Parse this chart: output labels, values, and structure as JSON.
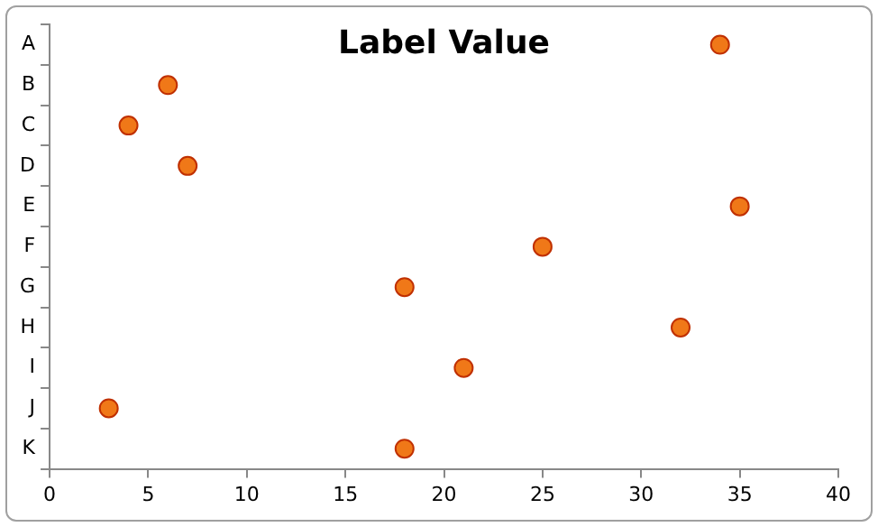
{
  "chart_data": {
    "type": "scatter",
    "title": "Label Value",
    "orientation": "horizontal",
    "categories": [
      "A",
      "B",
      "C",
      "D",
      "E",
      "F",
      "G",
      "H",
      "I",
      "J",
      "K"
    ],
    "values": [
      34,
      6,
      4,
      7,
      35,
      25,
      18,
      32,
      21,
      3,
      18
    ],
    "color": "#f07818",
    "marker": "circle",
    "xlim": [
      0,
      40
    ],
    "xticks": [
      0,
      5,
      10,
      15,
      20,
      25,
      30,
      35,
      40
    ],
    "grid": false,
    "legend": false
  }
}
